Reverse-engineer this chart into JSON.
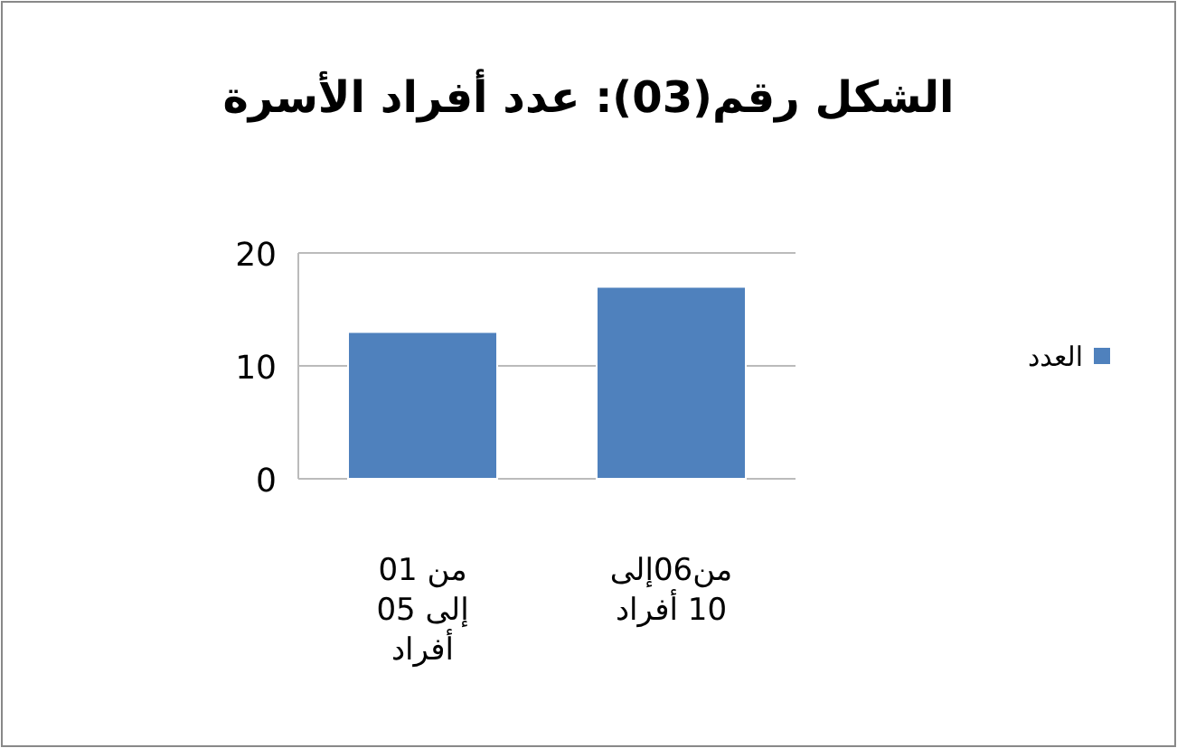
{
  "chart_data": {
    "type": "bar",
    "title": "الشكل رقم(03): عدد أفراد الأسرة",
    "categories": [
      "من 01 إلى 05 أفراد",
      "من06إلى 10 أفراد"
    ],
    "series": [
      {
        "name": "العدد",
        "color": "#4f81bd",
        "values": [
          13,
          17
        ]
      }
    ],
    "ylim": [
      0,
      20
    ],
    "yticks": [
      0,
      10,
      20
    ],
    "grid": "y",
    "legend": "right"
  }
}
